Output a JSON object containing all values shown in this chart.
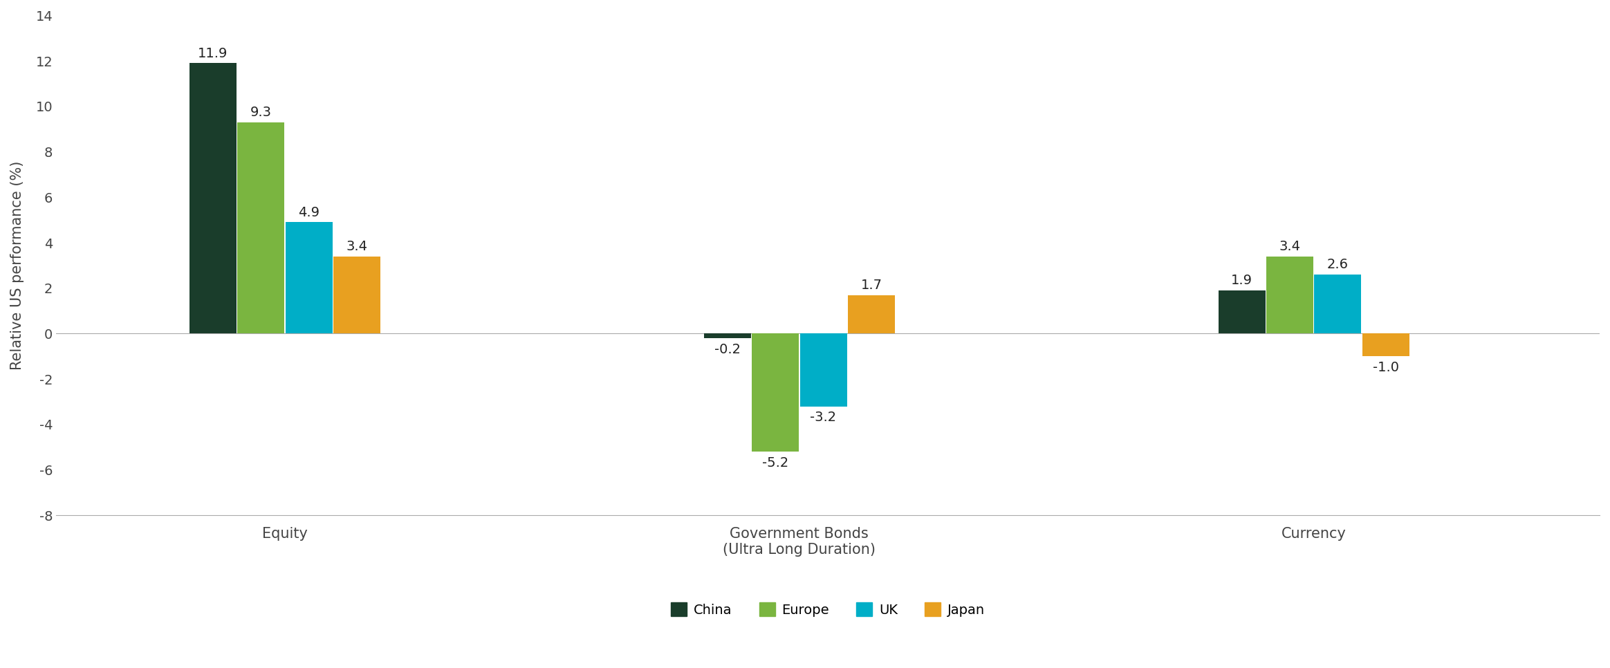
{
  "categories": [
    "Equity",
    "Government Bonds\n(Ultra Long Duration)",
    "Currency"
  ],
  "series": {
    "China": [
      11.9,
      -0.2,
      1.9
    ],
    "Europe": [
      9.3,
      -5.2,
      3.4
    ],
    "UK": [
      4.9,
      -3.2,
      2.6
    ],
    "Japan": [
      3.4,
      1.7,
      -1.0
    ]
  },
  "colors": {
    "China": "#1a3d2b",
    "Europe": "#7ab540",
    "UK": "#00aec7",
    "Japan": "#e8a020"
  },
  "ylabel": "Relative US performance (%)",
  "ylim": [
    -8,
    14
  ],
  "yticks": [
    -8,
    -6,
    -4,
    -2,
    0,
    2,
    4,
    6,
    8,
    10,
    12,
    14
  ],
  "bar_width": 0.42,
  "group_centers": [
    2.0,
    6.5,
    11.0
  ],
  "xlim": [
    0.0,
    13.5
  ],
  "background_color": "#ffffff",
  "label_fontsize": 15,
  "tick_fontsize": 14,
  "ylabel_fontsize": 15,
  "legend_fontsize": 14,
  "annotation_fontsize": 14
}
